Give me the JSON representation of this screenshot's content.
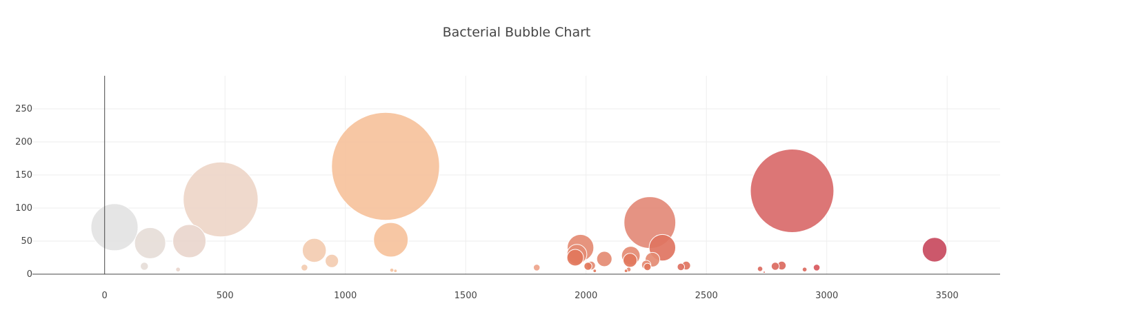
{
  "chart_data": {
    "type": "scatter",
    "title": "Bacterial Bubble Chart",
    "xlabel": "",
    "ylabel": "",
    "xlim": [
      -300,
      3720
    ],
    "ylim": [
      0,
      300
    ],
    "x_ticks": [
      0,
      500,
      1000,
      1500,
      2000,
      2500,
      3000,
      3500
    ],
    "y_ticks": [
      0,
      50,
      100,
      150,
      200,
      250
    ],
    "grid": true,
    "legend": "none",
    "marker_size_encodes": "y value",
    "series": [
      {
        "points": [
          {
            "x": 41,
            "y": 71,
            "color": "#e3e3e3"
          },
          {
            "x": 165,
            "y": 12,
            "color": "#e6ddd8"
          },
          {
            "x": 189,
            "y": 47,
            "color": "#e6ddd8"
          },
          {
            "x": 305,
            "y": 7,
            "color": "#e9d6cd"
          },
          {
            "x": 352,
            "y": 50,
            "color": "#e9d6cd"
          },
          {
            "x": 482,
            "y": 113,
            "color": "#eed6c8"
          },
          {
            "x": 830,
            "y": 10,
            "color": "#f3ccb1"
          },
          {
            "x": 871,
            "y": 36,
            "color": "#f3ccb1"
          },
          {
            "x": 944,
            "y": 20,
            "color": "#f3ccb1"
          },
          {
            "x": 1167,
            "y": 163,
            "color": "#f6c29c"
          },
          {
            "x": 1189,
            "y": 52,
            "color": "#f6c29c"
          },
          {
            "x": 1193,
            "y": 6,
            "color": "#f4c3a3"
          },
          {
            "x": 1208,
            "y": 5,
            "color": "#f4c3a3"
          },
          {
            "x": 1795,
            "y": 10,
            "color": "#eea48b"
          },
          {
            "x": 1977,
            "y": 40,
            "color": "#e48b73"
          },
          {
            "x": 1962,
            "y": 30,
            "color": "#e48b73"
          },
          {
            "x": 1955,
            "y": 25,
            "color": "#e2775c"
          },
          {
            "x": 2008,
            "y": 12,
            "color": "#e2775c"
          },
          {
            "x": 2021,
            "y": 13,
            "color": "#e48b73"
          },
          {
            "x": 2036,
            "y": 5,
            "color": "#e2775c"
          },
          {
            "x": 2076,
            "y": 23,
            "color": "#e48b73"
          },
          {
            "x": 2166,
            "y": 5,
            "color": "#e2775c"
          },
          {
            "x": 2177,
            "y": 7,
            "color": "#e48b73"
          },
          {
            "x": 2186,
            "y": 28,
            "color": "#e48b73"
          },
          {
            "x": 2183,
            "y": 21,
            "color": "#e2775c"
          },
          {
            "x": 2250,
            "y": 14,
            "color": "#e48b73"
          },
          {
            "x": 2255,
            "y": 11,
            "color": "#e2775c"
          },
          {
            "x": 2265,
            "y": 78,
            "color": "#e38a78"
          },
          {
            "x": 2276,
            "y": 22,
            "color": "#e48b73"
          },
          {
            "x": 2317,
            "y": 40,
            "color": "#df7461"
          },
          {
            "x": 2394,
            "y": 11,
            "color": "#dd6f5f"
          },
          {
            "x": 2416,
            "y": 13,
            "color": "#df7461"
          },
          {
            "x": 2723,
            "y": 8,
            "color": "#db6a60"
          },
          {
            "x": 2740,
            "y": 3,
            "color": "#db6a60"
          },
          {
            "x": 2786,
            "y": 12,
            "color": "#db6a60"
          },
          {
            "x": 2813,
            "y": 13,
            "color": "#db6a60"
          },
          {
            "x": 2856,
            "y": 126,
            "color": "#d96a6a"
          },
          {
            "x": 2908,
            "y": 7,
            "color": "#db6a60"
          },
          {
            "x": 2958,
            "y": 10,
            "color": "#d8585d"
          },
          {
            "x": 3448,
            "y": 37,
            "color": "#c84a5e"
          }
        ]
      }
    ]
  }
}
